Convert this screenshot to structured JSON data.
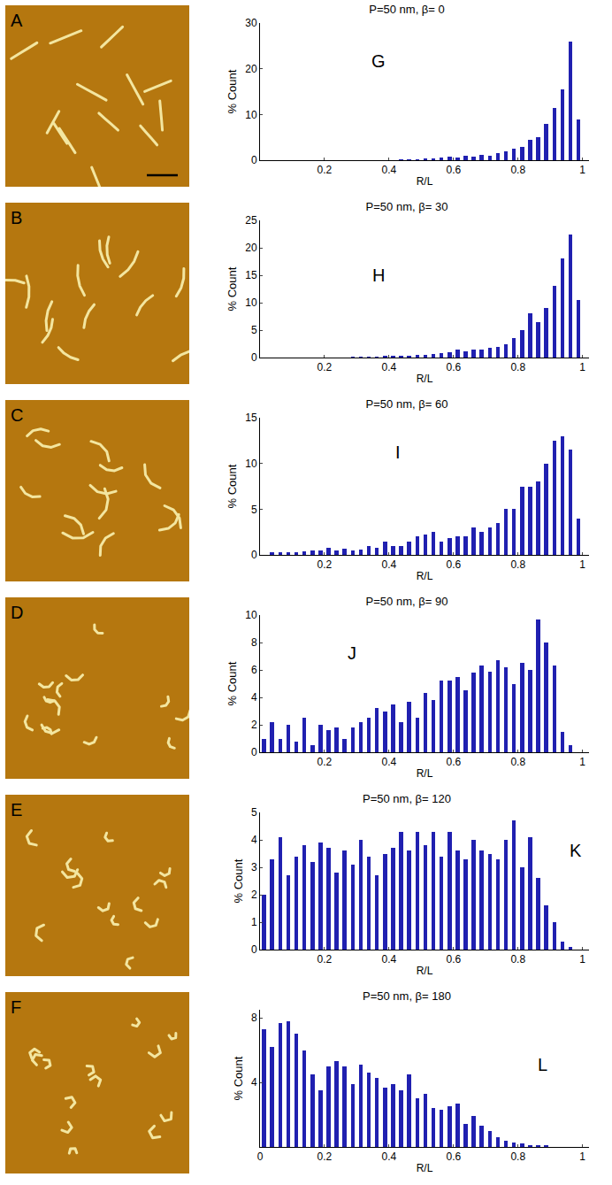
{
  "images": [
    {
      "label": "A"
    },
    {
      "label": "B"
    },
    {
      "label": "C"
    },
    {
      "label": "D"
    },
    {
      "label": "E"
    },
    {
      "label": "F"
    }
  ],
  "chart_data": [
    {
      "type": "histogram",
      "label": "G",
      "title": "P=50 nm, β= 0",
      "x_label": "R/L",
      "y_label": "% Count",
      "color": "#2020b0",
      "bins": [
        0,
        0.025,
        0.05,
        0.075,
        0.1,
        0.125,
        0.15,
        0.175,
        0.2,
        0.225,
        0.25,
        0.275,
        0.3,
        0.325,
        0.35,
        0.375,
        0.4,
        0.425,
        0.45,
        0.475,
        0.5,
        0.525,
        0.55,
        0.575,
        0.6,
        0.625,
        0.65,
        0.675,
        0.7,
        0.725,
        0.75,
        0.775,
        0.8,
        0.825,
        0.85,
        0.875,
        0.9,
        0.925,
        0.95,
        0.975,
        1
      ],
      "values": [
        0,
        0,
        0,
        0,
        0,
        0,
        0,
        0,
        0,
        0,
        0,
        0,
        0,
        0,
        0,
        0,
        0,
        0.1,
        0.2,
        0.2,
        0.4,
        0.3,
        0.5,
        0.8,
        0.6,
        1,
        0.8,
        1.2,
        1,
        1.5,
        2,
        2.5,
        3,
        4.5,
        5,
        8,
        11.5,
        15.5,
        26,
        9
      ],
      "xlim": [
        0,
        1.02
      ],
      "xticks": [
        0.2,
        0.4,
        0.6,
        0.8,
        1
      ],
      "ylim": [
        0,
        30
      ],
      "yticks": [
        0,
        10,
        20,
        30
      ]
    },
    {
      "type": "histogram",
      "label": "H",
      "title": "P=50 nm, β= 30",
      "x_label": "R/L",
      "y_label": "% Count",
      "color": "#2020b0",
      "bins": [
        0,
        0.025,
        0.05,
        0.075,
        0.1,
        0.125,
        0.15,
        0.175,
        0.2,
        0.225,
        0.25,
        0.275,
        0.3,
        0.325,
        0.35,
        0.375,
        0.4,
        0.425,
        0.45,
        0.475,
        0.5,
        0.525,
        0.55,
        0.575,
        0.6,
        0.625,
        0.65,
        0.675,
        0.7,
        0.725,
        0.75,
        0.775,
        0.8,
        0.825,
        0.85,
        0.875,
        0.9,
        0.925,
        0.95,
        0.975,
        1
      ],
      "values": [
        0,
        0,
        0,
        0,
        0,
        0,
        0,
        0,
        0,
        0,
        0,
        0.1,
        0.1,
        0.2,
        0.2,
        0.3,
        0.3,
        0.3,
        0.4,
        0.5,
        0.5,
        0.6,
        0.8,
        1,
        1.5,
        1.2,
        1.5,
        1.5,
        1.8,
        2,
        2.5,
        3.5,
        5,
        8,
        6.5,
        9,
        13,
        18,
        22.5,
        10.5
      ],
      "xlim": [
        0,
        1.02
      ],
      "xticks": [
        0.2,
        0.4,
        0.6,
        0.8,
        1
      ],
      "ylim": [
        0,
        25
      ],
      "yticks": [
        0,
        5,
        10,
        15,
        20,
        25
      ]
    },
    {
      "type": "histogram",
      "label": "I",
      "title": "P=50 nm, β= 60",
      "x_label": "R/L",
      "y_label": "% Count",
      "color": "#2020b0",
      "bins": [
        0,
        0.025,
        0.05,
        0.075,
        0.1,
        0.125,
        0.15,
        0.175,
        0.2,
        0.225,
        0.25,
        0.275,
        0.3,
        0.325,
        0.35,
        0.375,
        0.4,
        0.425,
        0.45,
        0.475,
        0.5,
        0.525,
        0.55,
        0.575,
        0.6,
        0.625,
        0.65,
        0.675,
        0.7,
        0.725,
        0.75,
        0.775,
        0.8,
        0.825,
        0.85,
        0.875,
        0.9,
        0.925,
        0.95,
        0.975,
        1
      ],
      "values": [
        0,
        0.3,
        0.3,
        0.3,
        0.3,
        0.4,
        0.5,
        0.5,
        0.8,
        0.5,
        0.7,
        0.5,
        0.6,
        1,
        0.8,
        1.5,
        1,
        1,
        1.5,
        2,
        2.2,
        2.5,
        1.5,
        1.8,
        2,
        2,
        3,
        2.5,
        3,
        3.5,
        5,
        5,
        7.5,
        7.5,
        8,
        10,
        12.5,
        13,
        11.5,
        4
      ],
      "xlim": [
        0,
        1.02
      ],
      "xticks": [
        0.2,
        0.4,
        0.6,
        0.8,
        1
      ],
      "ylim": [
        0,
        15
      ],
      "yticks": [
        0,
        5,
        10,
        15
      ]
    },
    {
      "type": "histogram",
      "label": "J",
      "title": "P=50 nm, β= 90",
      "x_label": "R/L",
      "y_label": "% Count",
      "color": "#2020b0",
      "bins": [
        0,
        0.025,
        0.05,
        0.075,
        0.1,
        0.125,
        0.15,
        0.175,
        0.2,
        0.225,
        0.25,
        0.275,
        0.3,
        0.325,
        0.35,
        0.375,
        0.4,
        0.425,
        0.45,
        0.475,
        0.5,
        0.525,
        0.55,
        0.575,
        0.6,
        0.625,
        0.65,
        0.675,
        0.7,
        0.725,
        0.75,
        0.775,
        0.8,
        0.825,
        0.85,
        0.875,
        0.9,
        0.925,
        0.95,
        0.975,
        1
      ],
      "values": [
        1,
        2.2,
        1,
        2,
        0.8,
        2.5,
        0.5,
        2,
        1.6,
        1.8,
        1,
        1.8,
        2.2,
        2.5,
        3.2,
        3,
        3.5,
        2.2,
        3.7,
        2.5,
        4.3,
        3.8,
        5.2,
        5.2,
        5.5,
        4.5,
        5.8,
        6.3,
        5.9,
        6.7,
        6.2,
        5,
        6.5,
        6,
        9.7,
        8,
        6.3,
        1.5,
        0.5,
        0
      ],
      "xlim": [
        0,
        1.02
      ],
      "xticks": [
        0.2,
        0.4,
        0.6,
        0.8,
        1
      ],
      "ylim": [
        0,
        10
      ],
      "yticks": [
        0,
        2,
        4,
        6,
        8,
        10
      ]
    },
    {
      "type": "histogram",
      "label": "K",
      "title": "P=50 nm, β= 120",
      "x_label": "R/L",
      "y_label": "% Count",
      "color": "#2020b0",
      "bins": [
        0,
        0.025,
        0.05,
        0.075,
        0.1,
        0.125,
        0.15,
        0.175,
        0.2,
        0.225,
        0.25,
        0.275,
        0.3,
        0.325,
        0.35,
        0.375,
        0.4,
        0.425,
        0.45,
        0.475,
        0.5,
        0.525,
        0.55,
        0.575,
        0.6,
        0.625,
        0.65,
        0.675,
        0.7,
        0.725,
        0.75,
        0.775,
        0.8,
        0.825,
        0.85,
        0.875,
        0.9,
        0.925,
        0.95,
        0.975,
        1
      ],
      "values": [
        2,
        3.3,
        4.1,
        2.7,
        3.4,
        3.8,
        3.2,
        3.9,
        3.7,
        2.8,
        3.6,
        3.1,
        4,
        3.4,
        2.7,
        3.5,
        3.7,
        4.3,
        3.6,
        4.3,
        3.8,
        4.3,
        3.4,
        4.3,
        3.6,
        3.3,
        4,
        3.6,
        3.5,
        3.3,
        4,
        4.7,
        3,
        4.1,
        2.6,
        1.6,
        1,
        0.3,
        0.1,
        0
      ],
      "xlim": [
        0,
        1.02
      ],
      "xticks": [
        0.2,
        0.4,
        0.6,
        0.8,
        1
      ],
      "ylim": [
        0,
        5
      ],
      "yticks": [
        0,
        1,
        2,
        3,
        4,
        5
      ]
    },
    {
      "type": "histogram",
      "label": "L",
      "title": "P=50 nm, β= 180",
      "x_label": "R/L",
      "y_label": "% Count",
      "color": "#2020b0",
      "bins": [
        0,
        0.025,
        0.05,
        0.075,
        0.1,
        0.125,
        0.15,
        0.175,
        0.2,
        0.225,
        0.25,
        0.275,
        0.3,
        0.325,
        0.35,
        0.375,
        0.4,
        0.425,
        0.45,
        0.475,
        0.5,
        0.525,
        0.55,
        0.575,
        0.6,
        0.625,
        0.65,
        0.675,
        0.7,
        0.725,
        0.75,
        0.775,
        0.8,
        0.825,
        0.85,
        0.875,
        0.9,
        0.925,
        0.95,
        0.975,
        1
      ],
      "values": [
        7.3,
        6.2,
        7.7,
        7.8,
        7,
        6,
        4.5,
        3.5,
        5,
        5.3,
        5,
        3.9,
        5.1,
        4.6,
        4.3,
        3.7,
        3.9,
        3.5,
        4.5,
        3,
        3.3,
        2.4,
        2.3,
        2.5,
        2.7,
        1.4,
        1.9,
        1.3,
        1,
        0.6,
        0.4,
        0.3,
        0.2,
        0.1,
        0.1,
        0.1,
        0,
        0,
        0,
        0
      ],
      "xlim": [
        0,
        1.02
      ],
      "xticks": [
        0,
        0.2,
        0.4,
        0.6,
        0.8,
        1
      ],
      "ylim": [
        0,
        8.5
      ],
      "yticks": [
        4,
        8
      ]
    }
  ]
}
